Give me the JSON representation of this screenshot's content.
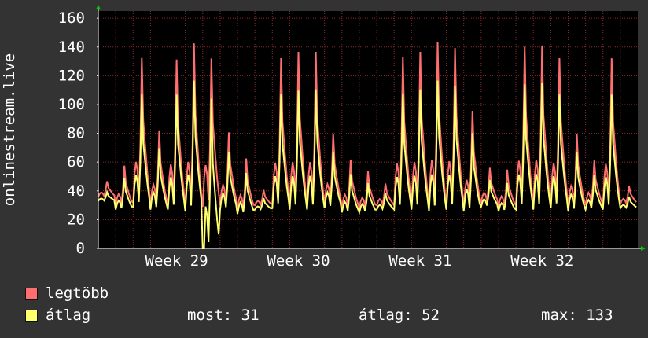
{
  "chart_data": {
    "type": "line",
    "ylabel": "onlinestream.live",
    "ylim": [
      0,
      165
    ],
    "yticks": [
      0,
      20,
      40,
      60,
      80,
      100,
      120,
      140,
      160
    ],
    "x_tick_labels": [
      "Week 29",
      "Week 30",
      "Week 31",
      "Week 32"
    ],
    "grid": true,
    "background": "#000000",
    "series": [
      {
        "name": "legtöbb",
        "color": "#ff6f6f",
        "daily_peak": [
          48,
          61,
          145,
          88,
          144,
          157,
          145,
          87,
          67,
          42,
          145,
          150,
          150,
          86,
          66,
          57,
          47,
          146,
          150,
          158,
          153,
          104,
          59,
          58,
          154,
          155,
          145,
          86,
          65,
          145,
          45
        ],
        "daily_trough": [
          36,
          30,
          32,
          30,
          30,
          28,
          29,
          30,
          27,
          30,
          31,
          30,
          30,
          31,
          28,
          28,
          30,
          30,
          30,
          29,
          30,
          29,
          32,
          29,
          30,
          30,
          31,
          29,
          30,
          30,
          31
        ]
      },
      {
        "name": "átlag",
        "color": "#ffff6f",
        "daily_peak": [
          40,
          52,
          117,
          75,
          117,
          128,
          117,
          72,
          56,
          36,
          117,
          120,
          121,
          72,
          55,
          48,
          40,
          118,
          121,
          128,
          124,
          87,
          50,
          48,
          125,
          126,
          117,
          72,
          54,
          117,
          37
        ],
        "daily_trough": [
          33,
          27,
          29,
          27,
          27,
          26,
          0,
          27,
          24,
          27,
          28,
          27,
          27,
          28,
          25,
          25,
          27,
          27,
          27,
          26,
          27,
          26,
          29,
          26,
          27,
          27,
          28,
          26,
          27,
          27,
          28
        ]
      }
    ]
  },
  "legend": {
    "max_label": "legtöbb",
    "avg_label": "átlag"
  },
  "stats": {
    "now_label": "most: 31",
    "avg_label": "átlag: 52",
    "max_label": "max: 133"
  },
  "colors": {
    "background": "#333333",
    "plot_bg": "#000000",
    "grid": "#8b2a2a",
    "axis": "#ffffff",
    "arrow": "#00cc00"
  }
}
